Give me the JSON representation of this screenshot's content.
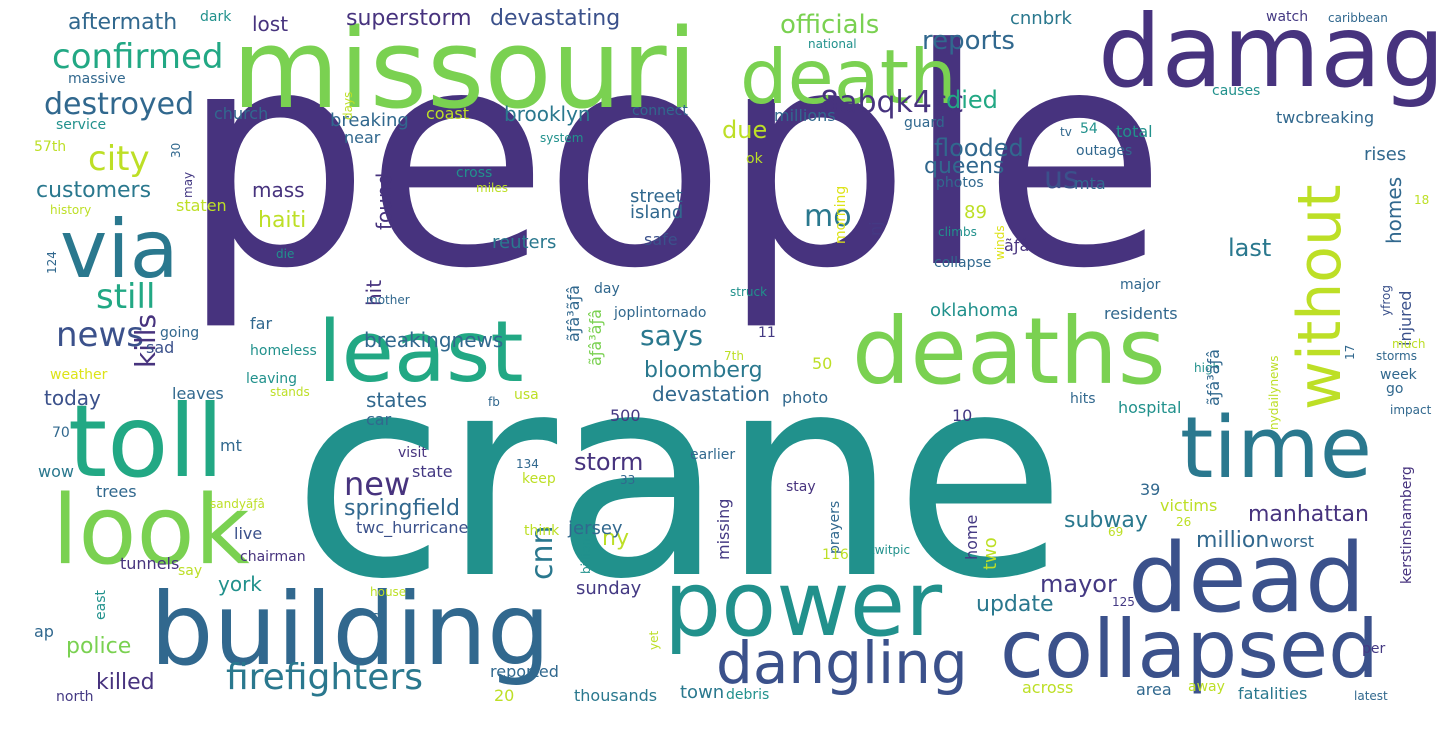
{
  "colors": {
    "background": "#ffffff",
    "purple": "#47337e",
    "indigo": "#443983",
    "blue": "#3b518b",
    "slate": "#31688e",
    "teal": "#2a788e",
    "cyan": "#21918c",
    "green": "#22a884",
    "lime": "#7ad151",
    "yellow": "#bddf26",
    "lightyellow": "#dde318"
  },
  "words": {
    "people": "people",
    "crane": "crane",
    "missouri": "missouri",
    "damage": "damage",
    "death": "death",
    "toll": "toll",
    "look": "look",
    "via": "via",
    "least": "least",
    "deaths": "deaths",
    "time": "time",
    "dead": "dead",
    "power": "power",
    "building": "building",
    "collapsed": "collapsed",
    "dangling": "dangling",
    "without": "without",
    "firefighters": "firefighters",
    "confirmed": "confirmed",
    "destroyed": "destroyed",
    "city": "city",
    "still": "still",
    "news": "news",
    "aftermath": "aftermath",
    "customers": "customers",
    "officials": "officials",
    "reports": "reports",
    "superstorm": "superstorm",
    "devastating": "devastating",
    "code": "8abqk4sc",
    "died": "died",
    "due": "due",
    "flooded": "flooded",
    "queens": "queens",
    "us": "us",
    "mo": "mo",
    "says": "says",
    "kills": "kills",
    "new": "new",
    "storm": "storm",
    "cnn": "cnn",
    "springfield": "springfield",
    "mayor": "mayor",
    "update": "update",
    "million": "million",
    "manhattan": "manhattan",
    "subway": "subway",
    "homes": "homes",
    "last": "last",
    "bloomberg": "bloomberg",
    "breakingnews": "breakingnews",
    "brooklyn": "brooklyn",
    "breaking": "breaking",
    "lost": "lost",
    "cnnbrk": "cnnbrk",
    "mass": "mass",
    "hit": "hit",
    "found": "found",
    "haiti": "haiti",
    "street": "street",
    "island": "island",
    "reuters": "reuters",
    "oklahoma": "oklahoma",
    "states": "states",
    "devastation": "devastation",
    "today": "today",
    "killed": "killed",
    "police": "police",
    "york": "york",
    "ny": "ny",
    "jersey": "jersey",
    "twc_hurricane": "twc_hurricane",
    "sunday": "sunday",
    "town": "town",
    "thousands": "thousands",
    "across": "across",
    "area": "area",
    "fatalities": "fatalities",
    "worst": "worst",
    "two": "two",
    "home": "home",
    "missing": "missing",
    "victims": "victims",
    "injured": "injured",
    "kerstinshamberg": "kerstinshamberg",
    "rises": "rises",
    "twcbreaking": "twcbreaking",
    "millions": "millions",
    "coast": "coast",
    "church": "church",
    "massive": "massive",
    "service": "service",
    "staten": "staten",
    "history": "history",
    "weather": "weather",
    "sad": "sad",
    "going": "going",
    "leaves": "leaves",
    "leaving": "leaving",
    "homeless": "homeless",
    "far": "far",
    "live": "live",
    "chairman": "chairman",
    "tunnels": "tunnels",
    "say": "say",
    "east": "east",
    "trees": "trees",
    "wow": "wow",
    "ap": "ap",
    "north": "north",
    "reported": "reported",
    "debris": "debris",
    "away": "away",
    "latest": "latest",
    "per": "per",
    "hospital": "hospital",
    "total": "total",
    "outages": "outages",
    "photos": "photos",
    "residents": "residents",
    "major": "major",
    "collapse": "collapse",
    "climbs": "climbs",
    "struck": "struck",
    "mother": "mother",
    "visit": "visit",
    "state": "state",
    "earlier": "earlier",
    "keep": "keep",
    "stay": "stay",
    "prayers": "prayers",
    "twitpic": "twitpic",
    "think": "think",
    "photo": "photo",
    "week": "week",
    "go": "go",
    "high": "high",
    "much": "much",
    "storms": "storms",
    "impact": "impact",
    "hits": "hits",
    "usa": "usa",
    "fb": "fb",
    "ok": "ok",
    "safe": "safe",
    "cross": "cross",
    "miles": "miles",
    "connect": "connect",
    "system": "system",
    "guard": "guard",
    "morning": "morning",
    "nj": "nj",
    "mta": "mta",
    "causes": "causes",
    "watch": "watch",
    "caribbean": "caribbean",
    "national": "national",
    "days": "days",
    "dark": "dark",
    "yfrog": "yfrog",
    "nydailynews": "nydailynews",
    "near": "near",
    "mt": "mt",
    "car": "car",
    "day": "day",
    "die": "die",
    "stands": "stands",
    "house": "house",
    "st": "st",
    "yet": "yet",
    "billion": "billion",
    "winds": "winds",
    "joplintornado": "joplintornado",
    "sandy": "sandyãƒâ",
    "garble1": "ãƒâ³ãƒâ",
    "garble2": "ãƒâ³ãƒâ",
    "garble3": "ãƒâ",
    "garble4": "ãƒâ³ãƒâ",
    "n500": "500",
    "n10": "10",
    "n89": "89",
    "n50": "50",
    "n11": "11",
    "n20": "20",
    "n39": "39",
    "n116": "116",
    "n134": "134",
    "n33": "33",
    "n26": "26",
    "n69": "69",
    "n125": "125",
    "n17": "17",
    "n18": "18",
    "n54": "54",
    "n57th": "57th",
    "n30": "30",
    "n124": "124",
    "n70": "70",
    "n7th": "7th",
    "tv": "tv",
    "may": "may"
  }
}
